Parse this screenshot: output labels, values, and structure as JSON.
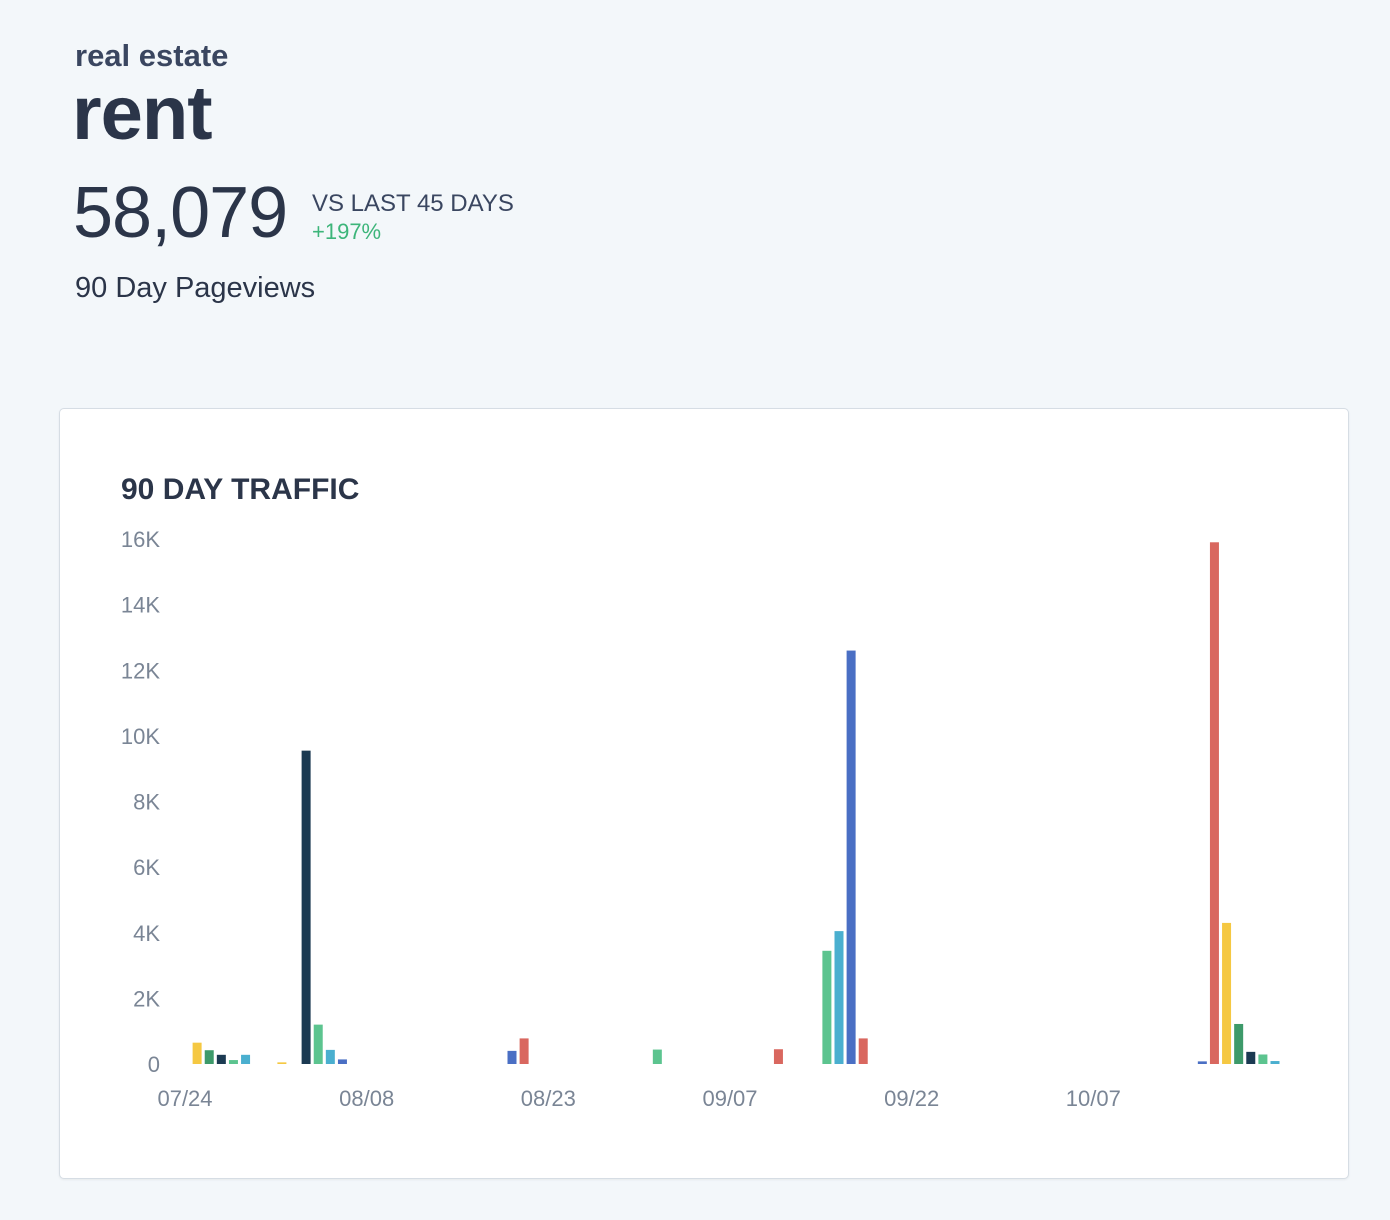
{
  "header": {
    "category": "real estate",
    "title": "rent",
    "total": "58,079",
    "comparison_label": "VS LAST 45 DAYS",
    "change": "+197%",
    "metric_label": "90 Day Pageviews"
  },
  "colors": {
    "positive": "#3db57a",
    "palette": [
      "#f5c842",
      "#3d9a6a",
      "#1b3a52",
      "#5cc48f",
      "#4aafcf",
      "#4a6fc4",
      "#d9675f"
    ]
  },
  "chart_data": {
    "type": "bar",
    "title": "90 DAY TRAFFIC",
    "xlabel": "",
    "ylabel": "",
    "ylim": [
      0,
      16000
    ],
    "y_ticks": [
      {
        "value": 0,
        "label": "0"
      },
      {
        "value": 2000,
        "label": "2K"
      },
      {
        "value": 4000,
        "label": "4K"
      },
      {
        "value": 6000,
        "label": "6K"
      },
      {
        "value": 8000,
        "label": "8K"
      },
      {
        "value": 10000,
        "label": "10K"
      },
      {
        "value": 12000,
        "label": "12K"
      },
      {
        "value": 14000,
        "label": "14K"
      },
      {
        "value": 16000,
        "label": "16K"
      }
    ],
    "x_start_day": 0,
    "x_end_day": 90,
    "x_ticks": [
      {
        "day": 0,
        "label": "07/24"
      },
      {
        "day": 15,
        "label": "08/08"
      },
      {
        "day": 30,
        "label": "08/23"
      },
      {
        "day": 45,
        "label": "09/07"
      },
      {
        "day": 60,
        "label": "09/22"
      },
      {
        "day": 75,
        "label": "10/07"
      }
    ],
    "bars": [
      {
        "day": 1,
        "value": 650,
        "color": "#f5c842"
      },
      {
        "day": 2,
        "value": 420,
        "color": "#3d9a6a"
      },
      {
        "day": 3,
        "value": 280,
        "color": "#1b3a52"
      },
      {
        "day": 4,
        "value": 120,
        "color": "#5cc48f"
      },
      {
        "day": 5,
        "value": 280,
        "color": "#4aafcf"
      },
      {
        "day": 8,
        "value": 50,
        "color": "#f5c842"
      },
      {
        "day": 10,
        "value": 9550,
        "color": "#1b3a52"
      },
      {
        "day": 11,
        "value": 1200,
        "color": "#5cc48f"
      },
      {
        "day": 12,
        "value": 430,
        "color": "#4aafcf"
      },
      {
        "day": 13,
        "value": 140,
        "color": "#4a6fc4"
      },
      {
        "day": 27,
        "value": 400,
        "color": "#4a6fc4"
      },
      {
        "day": 28,
        "value": 780,
        "color": "#d9675f"
      },
      {
        "day": 39,
        "value": 440,
        "color": "#5cc48f"
      },
      {
        "day": 49,
        "value": 450,
        "color": "#d9675f"
      },
      {
        "day": 53,
        "value": 3450,
        "color": "#5cc48f"
      },
      {
        "day": 54,
        "value": 4050,
        "color": "#4aafcf"
      },
      {
        "day": 55,
        "value": 12600,
        "color": "#4a6fc4"
      },
      {
        "day": 56,
        "value": 780,
        "color": "#d9675f"
      },
      {
        "day": 84,
        "value": 80,
        "color": "#4a6fc4"
      },
      {
        "day": 85,
        "value": 15900,
        "color": "#d9675f"
      },
      {
        "day": 86,
        "value": 4300,
        "color": "#f5c842"
      },
      {
        "day": 87,
        "value": 1220,
        "color": "#3d9a6a"
      },
      {
        "day": 88,
        "value": 370,
        "color": "#1b3a52"
      },
      {
        "day": 89,
        "value": 290,
        "color": "#5cc48f"
      },
      {
        "day": 90,
        "value": 90,
        "color": "#4aafcf"
      }
    ]
  }
}
